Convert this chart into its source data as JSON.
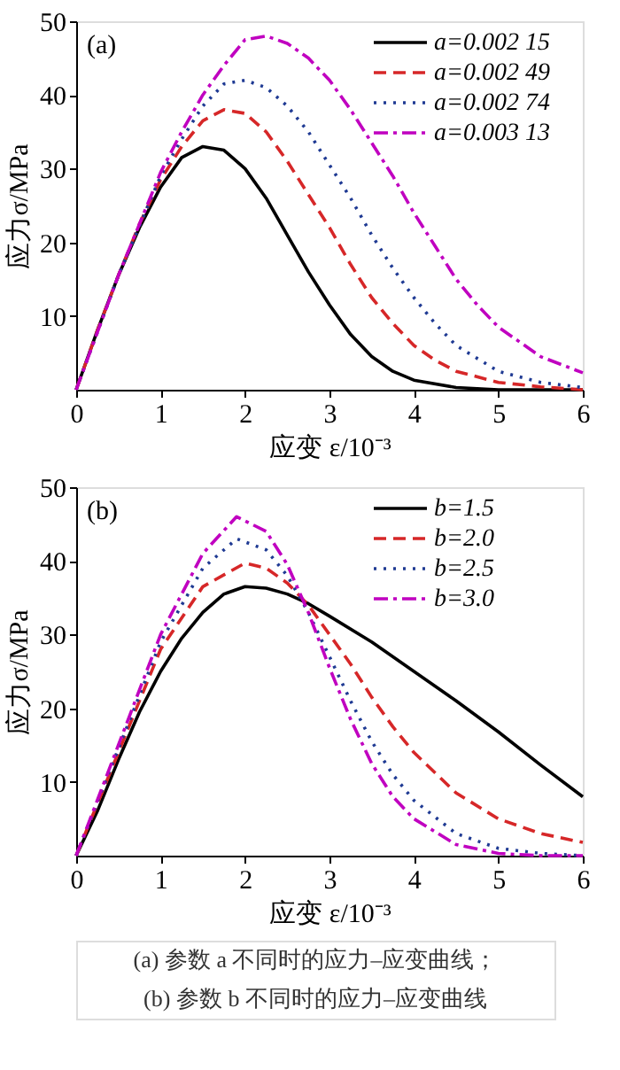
{
  "chart_data": [
    {
      "type": "line",
      "xlabel": "应变 ε/10⁻³",
      "ylabel": "应力σ/MPa",
      "annotations": [
        "(a)",
        "(a)  参数 a 不同时的应力–应变曲线；"
      ],
      "xlim": [
        0,
        6
      ],
      "ylim": [
        0,
        50
      ],
      "xticks": [
        0,
        1,
        2,
        3,
        4,
        5,
        6
      ],
      "yticks": [
        10,
        20,
        30,
        40,
        50
      ],
      "grid": false,
      "legend": "top right",
      "marker": "none",
      "series": [
        {
          "name": "a=0.002 15",
          "color": "#000000",
          "line_style": "solid",
          "x": [
            0,
            0.25,
            0.5,
            0.75,
            1,
            1.25,
            1.5,
            1.75,
            2,
            2.25,
            2.5,
            2.75,
            3,
            3.25,
            3.5,
            3.75,
            4,
            4.5,
            5,
            6
          ],
          "values": [
            0,
            8,
            15.5,
            22,
            27.5,
            31.5,
            33,
            32.5,
            30,
            26,
            21,
            16,
            11.5,
            7.5,
            4.5,
            2.5,
            1.3,
            0.3,
            0,
            0
          ]
        },
        {
          "name": "a=0.002 49",
          "color": "#d62728",
          "line_style": "dashed",
          "x": [
            0,
            0.25,
            0.5,
            0.75,
            1,
            1.25,
            1.5,
            1.75,
            2,
            2.25,
            2.5,
            2.75,
            3,
            3.25,
            3.5,
            3.75,
            4,
            4.25,
            4.5,
            5,
            5.5,
            6
          ],
          "values": [
            0,
            8,
            15.5,
            22.5,
            28.5,
            33,
            36.5,
            38,
            37.5,
            35,
            31,
            26.5,
            22,
            17,
            12.5,
            9,
            6,
            4,
            2.5,
            1,
            0.4,
            0
          ]
        },
        {
          "name": "a=0.002 74",
          "color": "#1f3a93",
          "line_style": "dotted",
          "x": [
            0,
            0.5,
            1,
            1.25,
            1.5,
            1.75,
            2,
            2.25,
            2.5,
            2.75,
            3,
            3.25,
            3.5,
            3.75,
            4,
            4.25,
            4.5,
            5,
            5.5,
            6
          ],
          "values": [
            0,
            15.5,
            29,
            34,
            38.5,
            41.5,
            42,
            41,
            38.5,
            35,
            30.5,
            26,
            21,
            16.5,
            12.5,
            9,
            6,
            2.5,
            1,
            0.3
          ]
        },
        {
          "name": "a=0.003 13",
          "color": "#c000c0",
          "line_style": "dashdot",
          "x": [
            0,
            0.5,
            1,
            1.25,
            1.5,
            1.75,
            2,
            2.25,
            2.5,
            2.75,
            3,
            3.25,
            3.5,
            3.75,
            4,
            4.25,
            4.5,
            4.75,
            5,
            5.5,
            6
          ],
          "values": [
            0,
            15.5,
            29.5,
            35,
            40,
            44,
            47.5,
            48,
            47,
            45,
            42,
            38,
            33.5,
            29,
            24,
            19.5,
            15,
            11.5,
            8.5,
            4.5,
            2.3
          ]
        }
      ]
    },
    {
      "type": "line",
      "xlabel": "应变 ε/10⁻³",
      "ylabel": "应力σ/MPa",
      "annotations": [
        "(b)",
        "(b)  参数 b 不同时的应力–应变曲线"
      ],
      "xlim": [
        0,
        6
      ],
      "ylim": [
        0,
        50
      ],
      "xticks": [
        0,
        1,
        2,
        3,
        4,
        5,
        6
      ],
      "yticks": [
        10,
        20,
        30,
        40,
        50
      ],
      "grid": false,
      "legend": "top right",
      "marker": "none",
      "series": [
        {
          "name": "b=1.5",
          "color": "#000000",
          "line_style": "solid",
          "x": [
            0,
            0.25,
            0.5,
            0.75,
            1,
            1.25,
            1.5,
            1.75,
            2,
            2.25,
            2.5,
            2.75,
            3,
            3.5,
            4,
            4.5,
            5,
            5.5,
            6
          ],
          "values": [
            0,
            6,
            13,
            19.5,
            25,
            29.5,
            33,
            35.5,
            36.5,
            36.3,
            35.5,
            34.2,
            32.5,
            29,
            25,
            21,
            16.8,
            12.3,
            8
          ]
        },
        {
          "name": "b=2.0",
          "color": "#d62728",
          "line_style": "dashed",
          "x": [
            0,
            0.5,
            1,
            1.5,
            2,
            2.25,
            2.5,
            2.75,
            3,
            3.25,
            3.5,
            3.75,
            4,
            4.5,
            5,
            5.5,
            6
          ],
          "values": [
            0,
            14,
            28,
            36.5,
            39.7,
            39,
            37,
            34,
            30,
            26,
            21.5,
            17.5,
            14,
            8.5,
            5,
            3,
            1.8
          ]
        },
        {
          "name": "b=2.5",
          "color": "#1f3a93",
          "line_style": "dotted",
          "x": [
            0,
            0.5,
            1,
            1.5,
            1.9,
            2.25,
            2.5,
            2.75,
            3,
            3.25,
            3.5,
            3.75,
            4,
            4.5,
            5,
            5.5,
            6
          ],
          "values": [
            0,
            14.5,
            29,
            39,
            43,
            41.5,
            38,
            33,
            27,
            21,
            15.5,
            11,
            7.5,
            3,
            1,
            0.3,
            0
          ]
        },
        {
          "name": "b=3.0",
          "color": "#c000c0",
          "line_style": "dashdot",
          "x": [
            0,
            0.5,
            1,
            1.5,
            1.9,
            2.25,
            2.5,
            2.75,
            3,
            3.25,
            3.5,
            3.75,
            4,
            4.5,
            5,
            5.5,
            6
          ],
          "values": [
            0,
            15,
            30,
            41,
            46,
            44,
            39.5,
            33,
            25.5,
            18.5,
            12.5,
            8,
            5,
            1.5,
            0.3,
            0,
            0
          ]
        }
      ]
    }
  ]
}
